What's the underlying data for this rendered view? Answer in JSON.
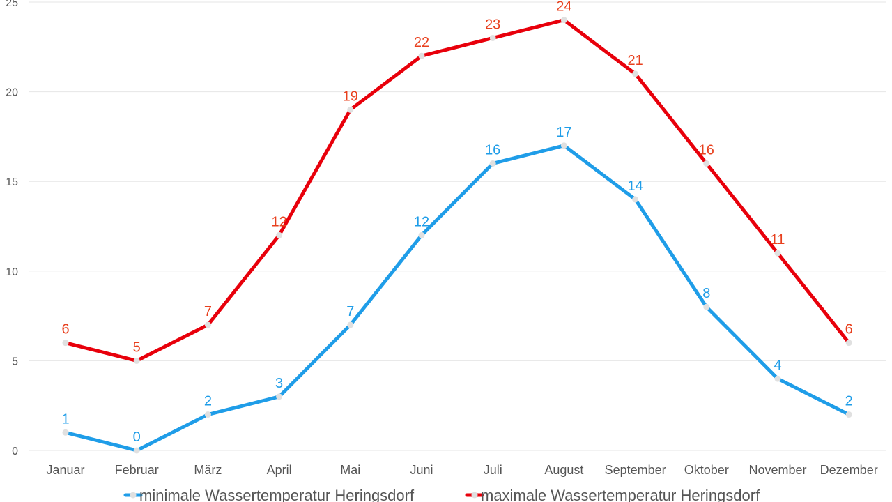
{
  "chart_data": {
    "type": "line",
    "categories": [
      "Januar",
      "Februar",
      "März",
      "April",
      "Mai",
      "Juni",
      "Juli",
      "August",
      "September",
      "Oktober",
      "November",
      "Dezember"
    ],
    "series": [
      {
        "name": "minimale Wassertemperatur Heringsdorf",
        "color": "#1f9de8",
        "label_color": "#1f9de8",
        "values": [
          1,
          0,
          2,
          3,
          7,
          12,
          16,
          17,
          14,
          8,
          4,
          2
        ]
      },
      {
        "name": "maximale Wassertemperatur Heringsdorf",
        "color": "#e8000b",
        "label_color": "#e8401e",
        "values": [
          6,
          5,
          7,
          12,
          19,
          22,
          23,
          24,
          21,
          16,
          11,
          6
        ]
      }
    ],
    "yticks": [
      0,
      5,
      10,
      15,
      20,
      25
    ],
    "ylim": [
      0,
      25
    ],
    "grid": true,
    "legend_position": "bottom",
    "marker_color": "#e0e0e0"
  }
}
